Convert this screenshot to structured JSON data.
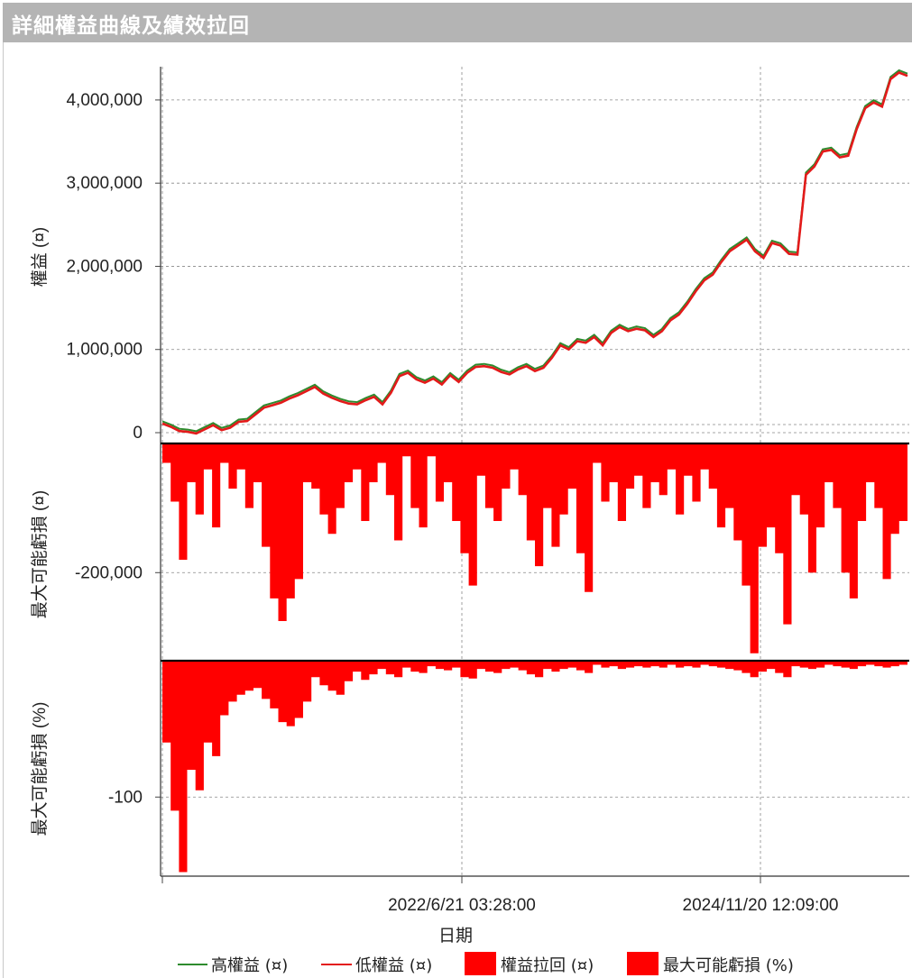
{
  "window": {
    "title": "詳細權益曲線及績效拉回"
  },
  "chart_data": {
    "type": "area",
    "xlabel": "日期",
    "x_ticks": [
      "2022/6/21 03:28:00",
      "2024/11/20 12:09:00"
    ],
    "panels": [
      {
        "name": "equity",
        "ylabel": "權益 (¤)",
        "y_ticks": [
          0,
          1000000,
          2000000,
          3000000,
          4000000
        ],
        "y_tick_labels": [
          "0",
          "1,000,000",
          "2,000,000",
          "3,000,000",
          "4,000,000"
        ],
        "ylim": [
          -130000,
          4400000
        ],
        "series": [
          {
            "name": "高權益 (¤)",
            "color": "#2e8b2e"
          },
          {
            "name": "低權益 (¤)",
            "color": "#e31a1a"
          }
        ],
        "values": [
          110000,
          70000,
          20000,
          10000,
          -10000,
          40000,
          90000,
          30000,
          60000,
          130000,
          140000,
          220000,
          300000,
          330000,
          360000,
          410000,
          450000,
          500000,
          550000,
          470000,
          420000,
          380000,
          350000,
          340000,
          390000,
          430000,
          340000,
          480000,
          680000,
          720000,
          640000,
          600000,
          650000,
          580000,
          690000,
          610000,
          720000,
          790000,
          800000,
          780000,
          730000,
          700000,
          760000,
          800000,
          740000,
          780000,
          900000,
          1050000,
          1000000,
          1100000,
          1080000,
          1150000,
          1050000,
          1200000,
          1270000,
          1220000,
          1250000,
          1230000,
          1150000,
          1220000,
          1350000,
          1420000,
          1550000,
          1700000,
          1830000,
          1900000,
          2050000,
          2180000,
          2250000,
          2320000,
          2180000,
          2100000,
          2280000,
          2250000,
          2150000,
          2140000,
          3100000,
          3200000,
          3380000,
          3400000,
          3310000,
          3330000,
          3650000,
          3900000,
          3970000,
          3920000,
          4250000,
          4330000,
          4290000
        ]
      },
      {
        "name": "drawdown",
        "ylabel": "最大可能虧損 (¤)",
        "y_ticks": [
          -200000
        ],
        "y_tick_labels": [
          "-200,000"
        ],
        "ylim": [
          -335000,
          0
        ],
        "series": [
          {
            "name": "權益拉回 (¤)",
            "color": "#ff0000"
          }
        ],
        "values": [
          -30000,
          -90000,
          -180000,
          -60000,
          -110000,
          -40000,
          -130000,
          -30000,
          -70000,
          -40000,
          -100000,
          -60000,
          -160000,
          -240000,
          -275000,
          -240000,
          -210000,
          -60000,
          -70000,
          -110000,
          -140000,
          -100000,
          -60000,
          -40000,
          -120000,
          -60000,
          -30000,
          -80000,
          -150000,
          -20000,
          -100000,
          -130000,
          -20000,
          -90000,
          -60000,
          -120000,
          -170000,
          -220000,
          -50000,
          -100000,
          -120000,
          -70000,
          -40000,
          -80000,
          -150000,
          -190000,
          -100000,
          -160000,
          -110000,
          -70000,
          -170000,
          -230000,
          -30000,
          -90000,
          -60000,
          -120000,
          -70000,
          -50000,
          -100000,
          -60000,
          -80000,
          -40000,
          -110000,
          -50000,
          -90000,
          -40000,
          -70000,
          -130000,
          -100000,
          -150000,
          -220000,
          -325000,
          -160000,
          -130000,
          -170000,
          -280000,
          -80000,
          -110000,
          -200000,
          -130000,
          -60000,
          -100000,
          -200000,
          -240000,
          -120000,
          -60000,
          -100000,
          -210000,
          -140000,
          -120000
        ]
      },
      {
        "name": "drawdown_pct",
        "ylabel": "最大可能虧損 (%)",
        "y_ticks": [
          -100
        ],
        "y_tick_labels": [
          "-100"
        ],
        "ylim": [
          -158,
          0
        ],
        "series": [
          {
            "name": "最大可能虧損 (%)",
            "color": "#ff0000"
          }
        ],
        "values": [
          -60,
          -110,
          -155,
          -80,
          -95,
          -60,
          -70,
          -40,
          -30,
          -25,
          -22,
          -20,
          -28,
          -35,
          -45,
          -48,
          -42,
          -30,
          -12,
          -18,
          -22,
          -25,
          -15,
          -8,
          -14,
          -10,
          -6,
          -10,
          -12,
          -5,
          -8,
          -9,
          -4,
          -6,
          -7,
          -5,
          -12,
          -13,
          -6,
          -8,
          -9,
          -6,
          -5,
          -7,
          -10,
          -12,
          -6,
          -8,
          -6,
          -5,
          -7,
          -9,
          -3,
          -5,
          -4,
          -6,
          -5,
          -4,
          -5,
          -4,
          -5,
          -3,
          -5,
          -4,
          -5,
          -3,
          -4,
          -5,
          -6,
          -7,
          -9,
          -12,
          -8,
          -6,
          -9,
          -12,
          -4,
          -5,
          -6,
          -5,
          -3,
          -4,
          -5,
          -6,
          -4,
          -3,
          -4,
          -5,
          -4,
          -3
        ]
      }
    ],
    "legend": {
      "position": "bottom",
      "items": [
        {
          "label": "高權益 (¤)",
          "kind": "line",
          "color": "#2e8b2e"
        },
        {
          "label": "低權益 (¤)",
          "kind": "line",
          "color": "#e31a1a"
        },
        {
          "label": "權益拉回 (¤)",
          "kind": "box",
          "color": "#ff0000"
        },
        {
          "label": "最大可能虧損 (%)",
          "kind": "box",
          "color": "#ff0000"
        }
      ]
    }
  }
}
